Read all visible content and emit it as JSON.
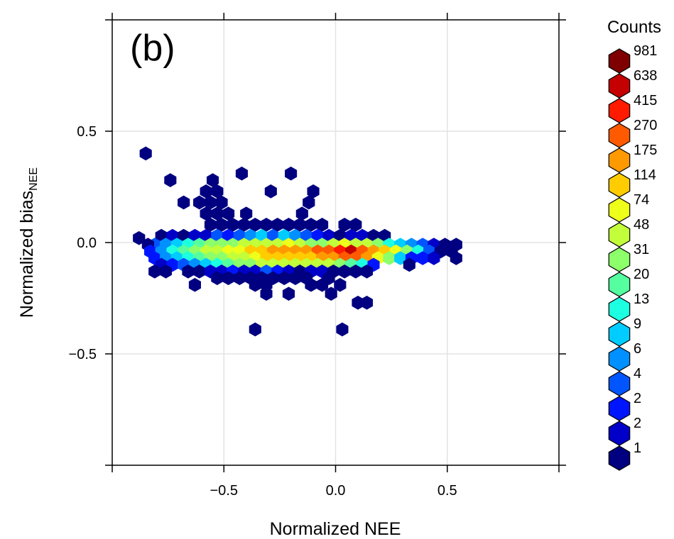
{
  "panel_label": "(b)",
  "chart_data": {
    "type": "hexbin",
    "xlabel": "Normalized NEE",
    "ylabel_main": "Normalized bias",
    "ylabel_sub": "NEE",
    "xlim": [
      -1.0,
      1.0
    ],
    "ylim": [
      -1.0,
      1.0
    ],
    "xticks": [
      -0.5,
      0.0,
      0.5
    ],
    "yticks": [
      -0.5,
      0.0,
      0.5
    ],
    "xtick_labels": [
      "−0.5",
      "0.0",
      "0.5"
    ],
    "ytick_labels": [
      "−0.5",
      "0.0",
      "0.5"
    ],
    "grid": true,
    "legend": {
      "title": "Counts",
      "placement": "right",
      "levels": [
        {
          "label": "981",
          "color": "#7f0000"
        },
        {
          "label": "638",
          "color": "#c40000"
        },
        {
          "label": "415",
          "color": "#ff1a00"
        },
        {
          "label": "270",
          "color": "#ff5a00"
        },
        {
          "label": "175",
          "color": "#ff9900"
        },
        {
          "label": "114",
          "color": "#ffcc00"
        },
        {
          "label": "74",
          "color": "#eeff1a"
        },
        {
          "label": "48",
          "color": "#c2ff3a"
        },
        {
          "label": "31",
          "color": "#8cff6a"
        },
        {
          "label": "20",
          "color": "#55ff9f"
        },
        {
          "label": "13",
          "color": "#1cffe0"
        },
        {
          "label": "9",
          "color": "#00ccff"
        },
        {
          "label": "6",
          "color": "#0090ff"
        },
        {
          "label": "4",
          "color": "#0055ff"
        },
        {
          "label": "2",
          "color": "#0015ff"
        },
        {
          "label": "2",
          "color": "#0000c8"
        },
        {
          "label": "1",
          "color": "#000080"
        }
      ]
    },
    "cells": [
      [
        -0.85,
        0.4,
        1
      ],
      [
        -0.74,
        0.28,
        1
      ],
      [
        -0.55,
        0.28,
        1
      ],
      [
        -0.42,
        0.31,
        1
      ],
      [
        -0.2,
        0.31,
        1
      ],
      [
        -0.29,
        0.23,
        1
      ],
      [
        -0.1,
        0.23,
        1
      ],
      [
        -0.58,
        0.23,
        1
      ],
      [
        -0.53,
        0.23,
        1
      ],
      [
        -0.56,
        0.18,
        1
      ],
      [
        -0.61,
        0.18,
        1
      ],
      [
        -0.51,
        0.18,
        1
      ],
      [
        -0.12,
        0.18,
        1
      ],
      [
        -0.68,
        0.18,
        1
      ],
      [
        -0.58,
        0.13,
        1
      ],
      [
        -0.53,
        0.13,
        1
      ],
      [
        -0.48,
        0.13,
        1
      ],
      [
        -0.4,
        0.13,
        1
      ],
      [
        -0.15,
        0.13,
        1
      ],
      [
        -0.56,
        0.08,
        1
      ],
      [
        -0.51,
        0.08,
        1
      ],
      [
        -0.46,
        0.08,
        1
      ],
      [
        -0.41,
        0.08,
        1
      ],
      [
        -0.36,
        0.08,
        1
      ],
      [
        -0.31,
        0.08,
        1
      ],
      [
        -0.26,
        0.08,
        1
      ],
      [
        -0.21,
        0.08,
        1
      ],
      [
        -0.16,
        0.08,
        1
      ],
      [
        -0.11,
        0.08,
        1
      ],
      [
        -0.06,
        0.08,
        1
      ],
      [
        0.04,
        0.08,
        1
      ],
      [
        0.09,
        0.08,
        1
      ],
      [
        -0.78,
        0.03,
        1
      ],
      [
        -0.73,
        0.03,
        2
      ],
      [
        -0.68,
        0.03,
        1
      ],
      [
        -0.63,
        0.03,
        2
      ],
      [
        -0.58,
        0.03,
        2
      ],
      [
        -0.53,
        0.03,
        4
      ],
      [
        -0.48,
        0.03,
        3
      ],
      [
        -0.43,
        0.03,
        4
      ],
      [
        -0.38,
        0.03,
        5
      ],
      [
        -0.33,
        0.03,
        6
      ],
      [
        -0.28,
        0.03,
        4
      ],
      [
        -0.23,
        0.03,
        6
      ],
      [
        -0.18,
        0.03,
        5
      ],
      [
        -0.13,
        0.03,
        4
      ],
      [
        -0.08,
        0.03,
        3
      ],
      [
        -0.03,
        0.03,
        2
      ],
      [
        0.02,
        0.03,
        1
      ],
      [
        0.07,
        0.03,
        2
      ],
      [
        0.12,
        0.03,
        2
      ],
      [
        0.17,
        0.03,
        1
      ],
      [
        0.22,
        0.03,
        1
      ],
      [
        -0.81,
        -0.01,
        4
      ],
      [
        -0.76,
        -0.01,
        5
      ],
      [
        -0.71,
        -0.01,
        6
      ],
      [
        -0.66,
        -0.01,
        7
      ],
      [
        -0.61,
        -0.01,
        8
      ],
      [
        -0.56,
        -0.01,
        9
      ],
      [
        -0.51,
        -0.01,
        9
      ],
      [
        -0.46,
        -0.01,
        9
      ],
      [
        -0.41,
        -0.01,
        10
      ],
      [
        -0.36,
        -0.01,
        10
      ],
      [
        -0.31,
        -0.01,
        10
      ],
      [
        -0.26,
        -0.01,
        10
      ],
      [
        -0.21,
        -0.01,
        11
      ],
      [
        -0.16,
        -0.01,
        10
      ],
      [
        -0.11,
        -0.01,
        9
      ],
      [
        -0.06,
        -0.01,
        9
      ],
      [
        -0.01,
        -0.01,
        10
      ],
      [
        0.04,
        -0.01,
        11
      ],
      [
        0.09,
        -0.01,
        10
      ],
      [
        0.14,
        -0.01,
        10
      ],
      [
        0.19,
        -0.01,
        9
      ],
      [
        0.24,
        -0.01,
        7
      ],
      [
        0.29,
        -0.01,
        6
      ],
      [
        0.34,
        -0.01,
        5
      ],
      [
        0.39,
        -0.01,
        4
      ],
      [
        0.44,
        -0.01,
        2
      ],
      [
        0.49,
        -0.01,
        1
      ],
      [
        0.54,
        -0.01,
        1
      ],
      [
        -0.88,
        0.02,
        1
      ],
      [
        -0.84,
        -0.01,
        1
      ],
      [
        -0.83,
        -0.04,
        3
      ],
      [
        -0.78,
        -0.04,
        5
      ],
      [
        -0.73,
        -0.04,
        7
      ],
      [
        -0.68,
        -0.04,
        8
      ],
      [
        -0.63,
        -0.04,
        9
      ],
      [
        -0.58,
        -0.04,
        10
      ],
      [
        -0.53,
        -0.04,
        10
      ],
      [
        -0.48,
        -0.04,
        11
      ],
      [
        -0.43,
        -0.04,
        11
      ],
      [
        -0.38,
        -0.04,
        12
      ],
      [
        -0.33,
        -0.04,
        12
      ],
      [
        -0.28,
        -0.04,
        13
      ],
      [
        -0.23,
        -0.04,
        13
      ],
      [
        -0.18,
        -0.04,
        13
      ],
      [
        -0.13,
        -0.04,
        13
      ],
      [
        -0.08,
        -0.04,
        14
      ],
      [
        -0.03,
        -0.04,
        14
      ],
      [
        0.02,
        -0.04,
        15
      ],
      [
        0.07,
        -0.04,
        16
      ],
      [
        0.12,
        -0.04,
        14
      ],
      [
        0.17,
        -0.04,
        13
      ],
      [
        0.22,
        -0.04,
        12
      ],
      [
        0.27,
        -0.04,
        11
      ],
      [
        0.32,
        -0.04,
        9
      ],
      [
        0.37,
        -0.04,
        7
      ],
      [
        0.42,
        -0.04,
        4
      ],
      [
        0.47,
        -0.04,
        1
      ],
      [
        0.52,
        -0.04,
        1
      ],
      [
        -0.81,
        -0.07,
        3
      ],
      [
        -0.76,
        -0.07,
        5
      ],
      [
        -0.71,
        -0.07,
        6
      ],
      [
        -0.66,
        -0.07,
        7
      ],
      [
        -0.61,
        -0.07,
        8
      ],
      [
        -0.56,
        -0.07,
        9
      ],
      [
        -0.51,
        -0.07,
        9
      ],
      [
        -0.46,
        -0.07,
        10
      ],
      [
        -0.41,
        -0.07,
        10
      ],
      [
        -0.36,
        -0.07,
        11
      ],
      [
        -0.31,
        -0.07,
        12
      ],
      [
        -0.26,
        -0.07,
        12
      ],
      [
        -0.21,
        -0.07,
        12
      ],
      [
        -0.16,
        -0.07,
        12
      ],
      [
        -0.11,
        -0.07,
        12
      ],
      [
        -0.06,
        -0.07,
        13
      ],
      [
        -0.01,
        -0.07,
        13
      ],
      [
        0.04,
        -0.07,
        14
      ],
      [
        0.09,
        -0.07,
        14
      ],
      [
        0.14,
        -0.07,
        13
      ],
      [
        0.19,
        -0.07,
        11
      ],
      [
        0.24,
        -0.07,
        9
      ],
      [
        0.29,
        -0.07,
        6
      ],
      [
        0.34,
        -0.07,
        3
      ],
      [
        0.39,
        -0.07,
        3
      ],
      [
        0.44,
        -0.07,
        2
      ],
      [
        0.54,
        -0.07,
        1
      ],
      [
        -0.78,
        -0.1,
        2
      ],
      [
        -0.73,
        -0.1,
        3
      ],
      [
        -0.68,
        -0.1,
        4
      ],
      [
        -0.63,
        -0.1,
        5
      ],
      [
        -0.58,
        -0.1,
        6
      ],
      [
        -0.53,
        -0.1,
        7
      ],
      [
        -0.48,
        -0.1,
        8
      ],
      [
        -0.43,
        -0.1,
        9
      ],
      [
        -0.38,
        -0.1,
        9
      ],
      [
        -0.33,
        -0.1,
        10
      ],
      [
        -0.28,
        -0.1,
        10
      ],
      [
        -0.23,
        -0.1,
        10
      ],
      [
        -0.18,
        -0.1,
        10
      ],
      [
        -0.13,
        -0.1,
        10
      ],
      [
        -0.08,
        -0.1,
        10
      ],
      [
        -0.03,
        -0.1,
        10
      ],
      [
        0.02,
        -0.1,
        9
      ],
      [
        0.07,
        -0.1,
        8
      ],
      [
        0.12,
        -0.1,
        7
      ],
      [
        0.17,
        -0.1,
        3
      ],
      [
        0.33,
        -0.1,
        1
      ],
      [
        -0.81,
        -0.13,
        1
      ],
      [
        -0.76,
        -0.13,
        1
      ],
      [
        -0.66,
        -0.13,
        1
      ],
      [
        -0.61,
        -0.13,
        1
      ],
      [
        -0.56,
        -0.13,
        2
      ],
      [
        -0.51,
        -0.13,
        2
      ],
      [
        -0.46,
        -0.13,
        3
      ],
      [
        -0.41,
        -0.13,
        2
      ],
      [
        -0.36,
        -0.13,
        2
      ],
      [
        -0.31,
        -0.13,
        4
      ],
      [
        -0.26,
        -0.13,
        3
      ],
      [
        -0.21,
        -0.13,
        2
      ],
      [
        -0.16,
        -0.13,
        1
      ],
      [
        -0.11,
        -0.13,
        2
      ],
      [
        -0.06,
        -0.13,
        2
      ],
      [
        -0.01,
        -0.13,
        1
      ],
      [
        0.04,
        -0.13,
        1
      ],
      [
        0.09,
        -0.13,
        1
      ],
      [
        0.14,
        -0.13,
        1
      ],
      [
        -0.53,
        -0.16,
        1
      ],
      [
        -0.48,
        -0.16,
        1
      ],
      [
        -0.43,
        -0.16,
        1
      ],
      [
        -0.38,
        -0.16,
        1
      ],
      [
        -0.33,
        -0.16,
        1
      ],
      [
        -0.28,
        -0.16,
        1
      ],
      [
        -0.23,
        -0.16,
        1
      ],
      [
        -0.18,
        -0.16,
        1
      ],
      [
        -0.13,
        -0.16,
        1
      ],
      [
        -0.03,
        -0.16,
        1
      ],
      [
        -0.63,
        -0.19,
        1
      ],
      [
        -0.36,
        -0.19,
        1
      ],
      [
        -0.31,
        -0.19,
        1
      ],
      [
        -0.11,
        -0.19,
        1
      ],
      [
        -0.06,
        -0.19,
        1
      ],
      [
        0.02,
        -0.19,
        1
      ],
      [
        -0.31,
        -0.23,
        1
      ],
      [
        -0.21,
        -0.23,
        1
      ],
      [
        -0.02,
        -0.23,
        1
      ],
      [
        0.1,
        -0.27,
        1
      ],
      [
        0.14,
        -0.27,
        1
      ],
      [
        -0.36,
        -0.39,
        1
      ],
      [
        0.03,
        -0.39,
        1
      ]
    ]
  }
}
